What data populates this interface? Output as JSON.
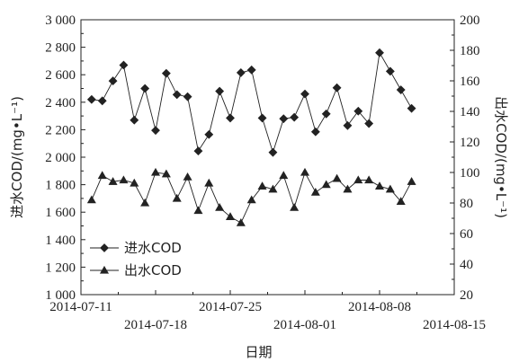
{
  "chart_data": {
    "type": "line",
    "xlabel": "日期",
    "ylabel_left": "进水COD/(mg•L⁻¹)",
    "ylabel_right": "出水COD/(mg•L⁻¹)",
    "xlim": [
      "2014-07-11",
      "2014-08-15"
    ],
    "x_ticks": [
      "2014-07-11",
      "2014-07-18",
      "2014-07-25",
      "2014-08-01",
      "2014-08-08",
      "2014-08-15"
    ],
    "ylim_left": [
      1000,
      3000
    ],
    "y_ticks_left": [
      "1 000",
      "1 200",
      "1 400",
      "1 600",
      "1 800",
      "2 000",
      "2 200",
      "2 400",
      "2 600",
      "2 800",
      "3 000"
    ],
    "ylim_right": [
      20,
      200
    ],
    "y_ticks_right": [
      "20",
      "40",
      "60",
      "80",
      "100",
      "120",
      "140",
      "160",
      "180",
      "200"
    ],
    "legend_position": "lower-left",
    "series": [
      {
        "name": "进水COD",
        "axis": "left",
        "marker": "diamond",
        "x": [
          "2014-07-12",
          "2014-07-13",
          "2014-07-14",
          "2014-07-15",
          "2014-07-16",
          "2014-07-17",
          "2014-07-18",
          "2014-07-19",
          "2014-07-20",
          "2014-07-21",
          "2014-07-22",
          "2014-07-23",
          "2014-07-24",
          "2014-07-25",
          "2014-07-26",
          "2014-07-27",
          "2014-07-28",
          "2014-07-29",
          "2014-07-30",
          "2014-07-31",
          "2014-08-01",
          "2014-08-02",
          "2014-08-03",
          "2014-08-04",
          "2014-08-05",
          "2014-08-06",
          "2014-08-07",
          "2014-08-08",
          "2014-08-09",
          "2014-08-10",
          "2014-08-11",
          "2014-08-12"
        ],
        "y": [
          2420,
          2410,
          2555,
          2670,
          2270,
          2500,
          2195,
          2610,
          2455,
          2440,
          2045,
          2165,
          2480,
          2285,
          2615,
          2635,
          2285,
          2035,
          2280,
          2290,
          2460,
          2185,
          2315,
          2505,
          2230,
          2335,
          2245,
          2760,
          2625,
          2490,
          2355,
          null
        ]
      },
      {
        "name": "出水COD",
        "axis": "right",
        "marker": "triangle",
        "x": [
          "2014-07-12",
          "2014-07-13",
          "2014-07-14",
          "2014-07-15",
          "2014-07-16",
          "2014-07-17",
          "2014-07-18",
          "2014-07-19",
          "2014-07-20",
          "2014-07-21",
          "2014-07-22",
          "2014-07-23",
          "2014-07-24",
          "2014-07-25",
          "2014-07-26",
          "2014-07-27",
          "2014-07-28",
          "2014-07-29",
          "2014-07-30",
          "2014-07-31",
          "2014-08-01",
          "2014-08-02",
          "2014-08-03",
          "2014-08-04",
          "2014-08-05",
          "2014-08-06",
          "2014-08-07",
          "2014-08-08",
          "2014-08-09",
          "2014-08-10",
          "2014-08-11",
          "2014-08-12"
        ],
        "y": [
          82,
          98,
          94,
          95,
          93,
          80,
          100,
          99,
          83,
          97,
          75,
          93,
          77,
          71,
          67,
          82,
          91,
          89,
          98,
          77,
          100,
          87,
          92,
          96,
          89,
          95,
          95,
          91,
          89,
          81,
          94,
          null
        ]
      }
    ]
  }
}
